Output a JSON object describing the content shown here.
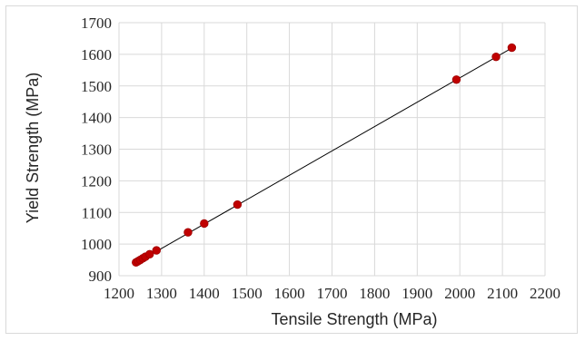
{
  "chart_data": {
    "type": "scatter",
    "xlabel": "Tensile Strength (MPa)",
    "ylabel": "Yield Strength (MPa)",
    "xlim": [
      1200,
      2200
    ],
    "ylim": [
      900,
      1700
    ],
    "xticks": [
      "1200",
      "1300",
      "1400",
      "1500",
      "1600",
      "1700",
      "1800",
      "1900",
      "2000",
      "2100",
      "2200"
    ],
    "yticks": [
      "900",
      "1000",
      "1100",
      "1200",
      "1300",
      "1400",
      "1500",
      "1600",
      "1700"
    ],
    "grid": true,
    "legend": "none",
    "series": [
      {
        "color": "#c00000",
        "points": [
          {
            "x": 1240,
            "y": 942
          },
          {
            "x": 1245,
            "y": 946
          },
          {
            "x": 1250,
            "y": 950
          },
          {
            "x": 1256,
            "y": 955
          },
          {
            "x": 1262,
            "y": 960
          },
          {
            "x": 1272,
            "y": 968
          },
          {
            "x": 1288,
            "y": 980
          },
          {
            "x": 1362,
            "y": 1037
          },
          {
            "x": 1400,
            "y": 1065
          },
          {
            "x": 1478,
            "y": 1125
          },
          {
            "x": 1992,
            "y": 1520
          },
          {
            "x": 2085,
            "y": 1592
          },
          {
            "x": 2122,
            "y": 1621
          }
        ]
      }
    ],
    "trendline": {
      "color": "#000000",
      "from": {
        "x": 1240,
        "y": 940
      },
      "to": {
        "x": 2125,
        "y": 1622
      }
    }
  }
}
